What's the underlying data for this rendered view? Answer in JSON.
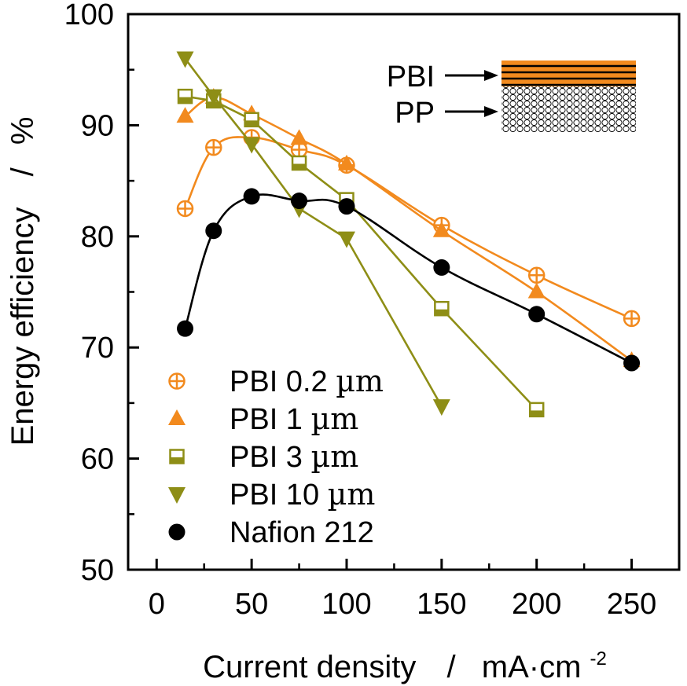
{
  "chart_data": {
    "type": "line",
    "title": "",
    "xlabel": "Current density",
    "xlabel_sep": "/",
    "xunit_main": "mA·cm",
    "xunit_exp": "-2",
    "ylabel": "Energy efficiency",
    "ylabel_sep": "/",
    "yunit": "%",
    "xlim": [
      -15,
      275
    ],
    "ylim": [
      50,
      100
    ],
    "xticks": [
      0,
      50,
      100,
      150,
      200,
      250
    ],
    "yticks": [
      50,
      60,
      70,
      80,
      90,
      100
    ],
    "xtick_labels": [
      "0",
      "50",
      "100",
      "150",
      "200",
      "250"
    ],
    "ytick_labels": [
      "50",
      "60",
      "70",
      "80",
      "90",
      "100"
    ],
    "grid": false,
    "legend_position": "bottom-left",
    "series": [
      {
        "name": "PBI 0.2 µm",
        "legend_main": "PBI 0.2 ",
        "legend_unit": "µm",
        "marker": "circle-plus-open",
        "color": "#f28a1e",
        "x": [
          15,
          30,
          50,
          75,
          100,
          150,
          200,
          250
        ],
        "y": [
          82.5,
          88.0,
          88.9,
          87.8,
          86.4,
          81.0,
          76.5,
          72.6
        ]
      },
      {
        "name": "PBI 1 µm",
        "legend_main": "PBI 1 ",
        "legend_unit": "µm",
        "marker": "triangle-up",
        "color": "#f28a1e",
        "x": [
          15,
          30,
          50,
          75,
          100,
          150,
          200,
          250
        ],
        "y": [
          90.8,
          92.5,
          91.0,
          88.8,
          86.5,
          80.5,
          75.0,
          68.8
        ]
      },
      {
        "name": "PBI 3 µm",
        "legend_main": "PBI 3 ",
        "legend_unit": "µm",
        "marker": "square-half",
        "color": "#8e8e16",
        "x": [
          15,
          30,
          50,
          75,
          100,
          150,
          200
        ],
        "y": [
          92.6,
          92.2,
          90.5,
          86.6,
          83.3,
          73.5,
          64.4
        ]
      },
      {
        "name": "PBI 10 µm",
        "legend_main": "PBI 10 ",
        "legend_unit": "µm",
        "marker": "triangle-down",
        "color": "#8e8e16",
        "x": [
          15,
          30,
          50,
          75,
          100,
          150
        ],
        "y": [
          96.0,
          92.6,
          88.3,
          82.5,
          79.8,
          64.7
        ]
      },
      {
        "name": "Nafion 212",
        "legend_main": "Nafion 212",
        "legend_unit": "",
        "marker": "circle",
        "color": "#000000",
        "x": [
          15,
          30,
          50,
          75,
          100,
          150,
          200,
          250
        ],
        "y": [
          71.7,
          80.5,
          83.6,
          83.2,
          82.7,
          77.2,
          73.0,
          68.6
        ]
      }
    ],
    "inset": {
      "labels": [
        "PBI",
        "PP"
      ],
      "pbi_color": "#f28a1e"
    }
  }
}
